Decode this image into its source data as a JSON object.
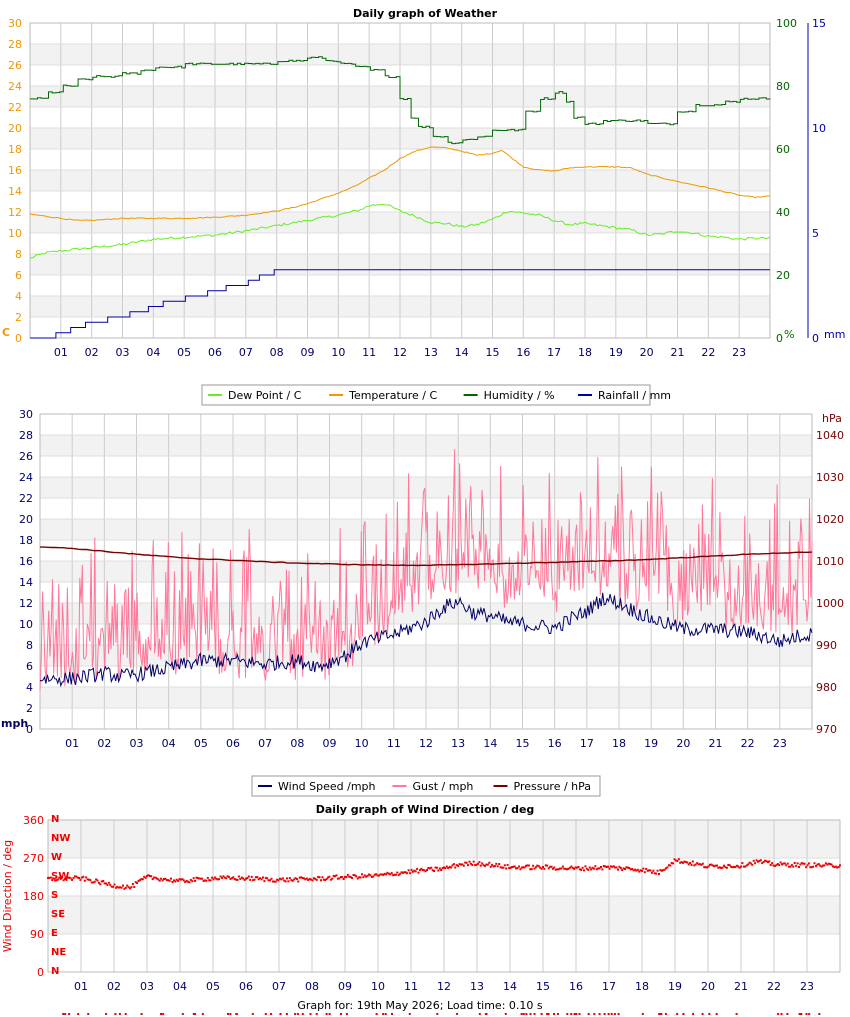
{
  "colors": {
    "dew": "#66ee22",
    "temp": "#ee9900",
    "humidity": "#006600",
    "rain": "#0000aa",
    "wind": "#000066",
    "gust": "#ff7799",
    "pressure": "#770000",
    "direction": "#ee0000",
    "hour_labels": "#000066",
    "band": "#f2f2f2",
    "grid": "#cccccc"
  },
  "footer": "Graph for: 19th May 2026; Load time: 0.10 s",
  "chart_data": [
    {
      "id": "weather",
      "type": "line",
      "title": "Daily graph of Weather",
      "x_labels": [
        "01",
        "02",
        "03",
        "04",
        "05",
        "06",
        "07",
        "08",
        "09",
        "10",
        "11",
        "12",
        "13",
        "14",
        "15",
        "16",
        "17",
        "18",
        "19",
        "20",
        "21",
        "22",
        "23"
      ],
      "xlim": [
        0,
        24
      ],
      "left_axis": {
        "label": "C",
        "ylim": [
          0,
          30
        ],
        "ticks": [
          "0",
          "2",
          "4",
          "6",
          "8",
          "10",
          "12",
          "14",
          "16",
          "18",
          "20",
          "22",
          "24",
          "26",
          "28",
          "30"
        ]
      },
      "right_axis_1": {
        "label": "%",
        "ylim": [
          0,
          100
        ],
        "ticks": [
          "0",
          "20",
          "40",
          "60",
          "80",
          "100"
        ]
      },
      "right_axis_2": {
        "label": "mm",
        "ylim": [
          0,
          15
        ],
        "ticks": [
          "0",
          "5",
          "10",
          "15"
        ]
      },
      "series": [
        {
          "name": "Dew Point / C",
          "axis": "left",
          "color_key": "dew",
          "jitter": 0.12,
          "x": [
            0,
            0.5,
            1,
            2,
            3,
            4,
            5,
            6,
            7,
            8,
            9,
            10,
            10.7,
            11,
            11.5,
            12,
            12.5,
            13,
            13.5,
            14,
            14.5,
            15,
            15.5,
            16,
            16.5,
            17,
            17.5,
            18,
            19,
            19.5,
            20,
            20.5,
            21,
            21.5,
            22,
            22.5,
            23,
            23.5,
            24
          ],
          "values": [
            7.6,
            8.1,
            8.3,
            8.6,
            8.9,
            9.4,
            9.6,
            9.8,
            10.2,
            10.7,
            11.2,
            11.7,
            12.2,
            12.6,
            12.8,
            12.1,
            11.6,
            11.0,
            10.9,
            10.6,
            10.8,
            11.3,
            12.1,
            11.9,
            11.7,
            11.2,
            10.8,
            10.9,
            10.5,
            10.3,
            9.8,
            9.9,
            10.2,
            10.0,
            9.7,
            9.6,
            9.4,
            9.5,
            9.5
          ]
        },
        {
          "name": "Temperature / C",
          "axis": "left",
          "color_key": "temp",
          "jitter": 0.05,
          "x": [
            0,
            1,
            1.5,
            2,
            3,
            4,
            5,
            6,
            7,
            7.5,
            8,
            8.5,
            9,
            9.5,
            10,
            10.5,
            11,
            11.5,
            12,
            12.5,
            13,
            13.5,
            14,
            14.5,
            15,
            15.3,
            15.6,
            16,
            16.5,
            17,
            17.5,
            18,
            18.5,
            19,
            19.5,
            20,
            21,
            22,
            23,
            23.5,
            24
          ],
          "values": [
            11.8,
            11.4,
            11.2,
            11.2,
            11.4,
            11.4,
            11.4,
            11.5,
            11.7,
            11.9,
            12.1,
            12.4,
            12.8,
            13.3,
            13.8,
            14.4,
            15.2,
            16.0,
            17.1,
            17.8,
            18.2,
            18.1,
            17.8,
            17.4,
            17.6,
            17.9,
            17.2,
            16.3,
            16.0,
            15.9,
            16.2,
            16.3,
            16.3,
            16.3,
            16.2,
            15.6,
            14.9,
            14.3,
            13.6,
            13.4,
            13.5
          ]
        },
        {
          "name": "Humidity / %",
          "axis": "right1",
          "color_key": "humidity",
          "step": true,
          "jitter": 0.3,
          "x": [
            0,
            0.5,
            1,
            1.5,
            2,
            2.5,
            3,
            3.5,
            4,
            5,
            6,
            7,
            8,
            8.5,
            9,
            9.5,
            10,
            10.5,
            11,
            11.5,
            12,
            12.3,
            12.6,
            13,
            13.5,
            14,
            14.5,
            15,
            15.2,
            15.5,
            16,
            16.5,
            17,
            17.3,
            17.6,
            18,
            18.5,
            19,
            19.5,
            20,
            20.5,
            21,
            21.5,
            22,
            22.5,
            23,
            24
          ],
          "values": [
            76,
            78,
            80,
            82,
            83,
            83,
            84,
            85,
            86,
            87,
            87,
            87,
            88,
            88,
            89,
            88,
            87,
            86,
            85,
            83,
            76,
            70,
            67,
            64,
            62,
            63,
            64,
            66,
            66,
            66,
            72,
            76,
            78,
            75,
            70,
            68,
            69,
            69,
            69,
            68,
            68,
            72,
            74,
            74,
            75,
            76,
            76
          ]
        },
        {
          "name": "Rainfall / mm",
          "axis": "right2",
          "color_key": "rain",
          "step": true,
          "x": [
            0,
            0.3,
            0.8,
            1.3,
            1.8,
            2.5,
            3.2,
            3.8,
            4.3,
            5,
            5.7,
            6.3,
            7,
            7.4,
            7.9,
            8.5,
            9,
            10,
            11,
            12,
            13,
            14,
            15,
            16,
            17,
            18,
            19,
            20,
            21,
            22,
            23,
            24
          ],
          "values": [
            0,
            0,
            0.25,
            0.5,
            0.75,
            1.0,
            1.25,
            1.5,
            1.75,
            2.0,
            2.25,
            2.5,
            2.75,
            3.0,
            3.25,
            3.25,
            3.25,
            3.25,
            3.25,
            3.25,
            3.25,
            3.25,
            3.25,
            3.25,
            3.25,
            3.25,
            3.25,
            3.25,
            3.25,
            3.25,
            3.25,
            3.25
          ]
        }
      ]
    },
    {
      "id": "wind",
      "type": "line",
      "title": "",
      "x_labels": [
        "01",
        "02",
        "03",
        "04",
        "05",
        "06",
        "07",
        "08",
        "09",
        "10",
        "11",
        "12",
        "13",
        "14",
        "15",
        "16",
        "17",
        "18",
        "19",
        "20",
        "21",
        "22",
        "23"
      ],
      "xlim": [
        0,
        24
      ],
      "left_axis": {
        "label": "mph",
        "ylim": [
          0,
          30
        ],
        "ticks": [
          "0",
          "2",
          "4",
          "6",
          "8",
          "10",
          "12",
          "14",
          "16",
          "18",
          "20",
          "22",
          "24",
          "26",
          "28",
          "30"
        ]
      },
      "right_axis_1": {
        "label": "hPa",
        "ylim": [
          970,
          1045
        ],
        "ticks": [
          "970",
          "980",
          "990",
          "1000",
          "1010",
          "1020",
          "1030",
          "1040"
        ]
      },
      "series": [
        {
          "name": "Wind Speed /mph",
          "axis": "left",
          "color_key": "wind",
          "jitter": 0.7,
          "x": [
            0,
            1,
            2,
            2.5,
            3,
            4,
            5,
            6,
            7,
            8,
            8.7,
            9.5,
            10,
            11,
            12,
            12.5,
            13,
            13.5,
            14,
            14.5,
            15,
            15.5,
            16,
            16.5,
            17,
            17.5,
            18,
            18.5,
            19,
            19.5,
            20,
            21,
            22,
            22.5,
            23,
            23.5,
            24
          ],
          "values": [
            4.8,
            4.8,
            5.3,
            5.0,
            5.2,
            5.8,
            6.5,
            6.5,
            6.2,
            6.5,
            6.0,
            7.0,
            8.2,
            9.0,
            10.2,
            11.5,
            12.2,
            11.0,
            10.8,
            10.2,
            10.0,
            9.8,
            9.6,
            10.5,
            11.2,
            12.5,
            12.0,
            11.2,
            10.5,
            10.0,
            9.5,
            9.5,
            9.2,
            8.8,
            8.3,
            8.8,
            9.0
          ]
        },
        {
          "name": "Gust / mph",
          "axis": "left",
          "color_key": "gust",
          "jitter": 4.5,
          "x": [
            0,
            1,
            2,
            3,
            4,
            5,
            6,
            7,
            8,
            9,
            10,
            11,
            11.5,
            12,
            13,
            14,
            15,
            16,
            17,
            17.5,
            18,
            19,
            20,
            21,
            22,
            23,
            24
          ],
          "values": [
            9.5,
            9.5,
            10,
            10.5,
            11,
            11,
            10.5,
            10.5,
            10.5,
            10,
            12,
            15,
            16,
            18,
            18,
            17.5,
            17,
            17,
            17.5,
            18.5,
            17,
            17,
            15.5,
            15,
            14.5,
            14.5,
            15
          ]
        },
        {
          "name": "Pressure / hPa",
          "axis": "right1",
          "color_key": "pressure",
          "jitter": 0.08,
          "x": [
            0,
            1,
            2,
            3,
            4,
            5,
            6,
            7,
            8,
            9,
            10,
            11,
            12,
            13,
            14,
            15,
            16,
            17,
            18,
            19,
            20,
            21,
            22,
            23,
            24
          ],
          "values": [
            1013.4,
            1013.0,
            1012.3,
            1011.6,
            1011.0,
            1010.5,
            1010.2,
            1009.8,
            1009.5,
            1009.3,
            1009.1,
            1009.0,
            1009.0,
            1009.1,
            1009.3,
            1009.5,
            1009.7,
            1009.9,
            1010.1,
            1010.4,
            1010.8,
            1011.2,
            1011.6,
            1011.9,
            1012.1
          ]
        }
      ]
    },
    {
      "id": "direction",
      "type": "scatter",
      "title": "Daily graph of Wind Direction / deg",
      "x_labels": [
        "01",
        "02",
        "03",
        "04",
        "05",
        "06",
        "07",
        "08",
        "09",
        "10",
        "11",
        "12",
        "13",
        "14",
        "15",
        "16",
        "17",
        "18",
        "19",
        "20",
        "21",
        "22",
        "23"
      ],
      "xlim": [
        0,
        24
      ],
      "left_axis": {
        "label": "Wind Direction / deg",
        "ylim": [
          0,
          360
        ],
        "ticks": [
          "0",
          "90",
          "180",
          "270",
          "360"
        ]
      },
      "compass_labels": [
        "N",
        "NE",
        "E",
        "SE",
        "S",
        "SW",
        "W",
        "NW",
        "N"
      ],
      "series": [
        {
          "name": "Wind Direction / deg",
          "color_key": "direction",
          "jitter": 5,
          "x": [
            0,
            1,
            2,
            2.5,
            3,
            4,
            5,
            6,
            7,
            8,
            9,
            10,
            11,
            12,
            12.5,
            13,
            14,
            15,
            16,
            17,
            18,
            18.5,
            19,
            20,
            21,
            21.5,
            22,
            23,
            24
          ],
          "values": [
            220,
            222,
            205,
            200,
            225,
            215,
            222,
            222,
            218,
            220,
            225,
            228,
            238,
            245,
            255,
            258,
            248,
            248,
            245,
            248,
            242,
            235,
            265,
            250,
            252,
            262,
            255,
            253,
            252
          ]
        }
      ]
    }
  ],
  "legends": {
    "weather": [
      {
        "label": "Dew Point / C",
        "color_key": "dew"
      },
      {
        "label": "Temperature / C",
        "color_key": "temp"
      },
      {
        "label": "Humidity / %",
        "color_key": "humidity"
      },
      {
        "label": "Rainfall / mm",
        "color_key": "rain"
      }
    ],
    "wind": [
      {
        "label": "Wind Speed /mph",
        "color_key": "wind"
      },
      {
        "label": "Gust / mph",
        "color_key": "gust"
      },
      {
        "label": "Pressure / hPa",
        "color_key": "pressure"
      }
    ]
  }
}
